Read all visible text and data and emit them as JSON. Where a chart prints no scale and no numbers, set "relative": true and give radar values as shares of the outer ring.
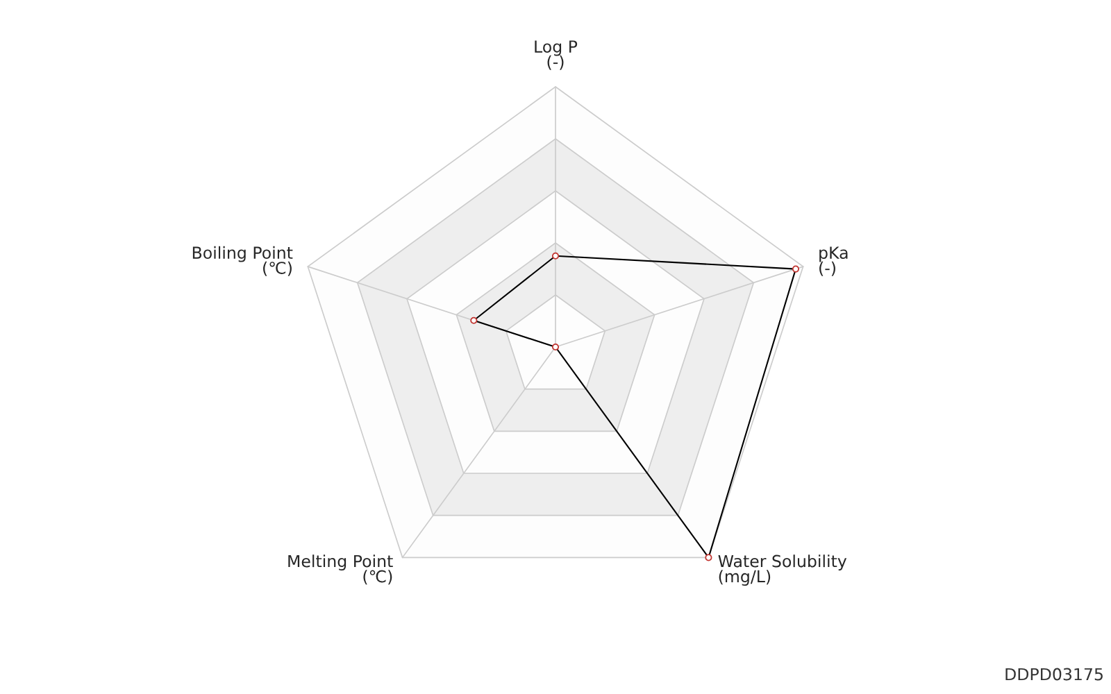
{
  "chart_data": {
    "type": "radar",
    "relative": true,
    "marker": "circle",
    "categories": [
      "Log P\n(-)",
      "pKa\n(-)",
      "Water Solubility\n(mg/L)",
      "Melting Point\n(℃)",
      "Boiling Point\n(℃)"
    ],
    "series": [
      {
        "color": "#000000",
        "values": [
          0.35,
          0.97,
          1.0,
          0.0,
          0.33
        ]
      }
    ],
    "annotations": [
      "DDPD03175"
    ]
  }
}
